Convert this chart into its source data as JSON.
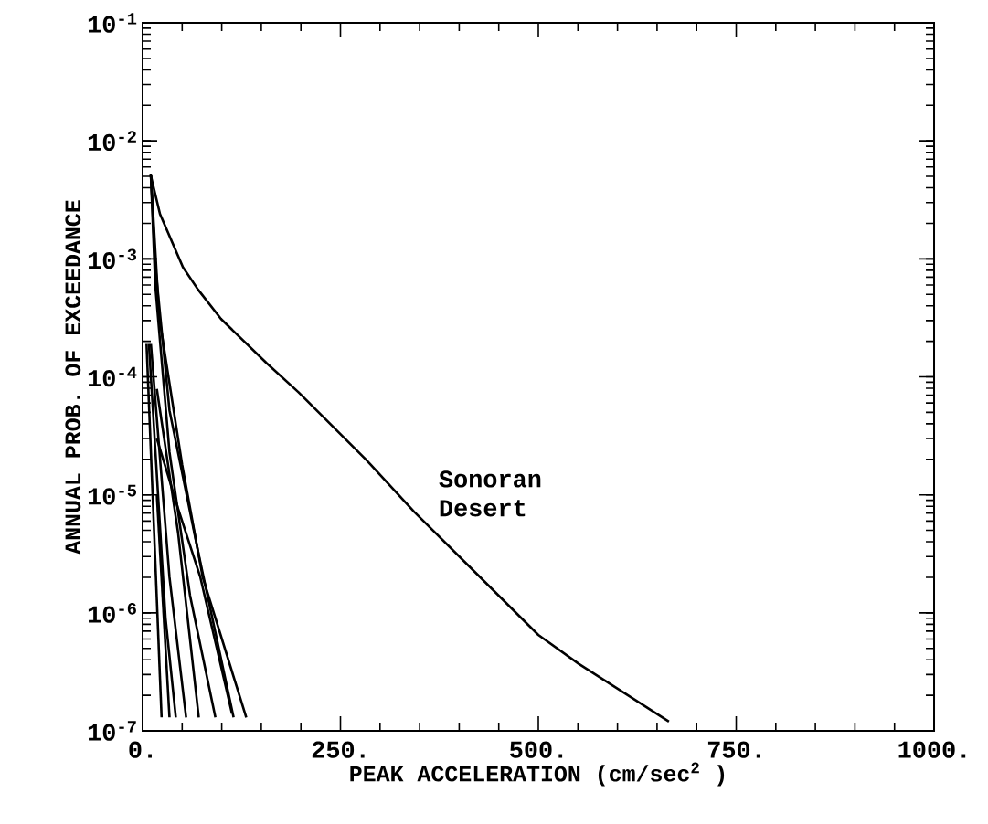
{
  "chart_data": {
    "type": "line",
    "xlabel": "PEAK ACCELERATION (cm/sec$^{2}$ )",
    "ylabel": "ANNUAL PROB. OF EXCEEDANCE",
    "log": "y",
    "marker": "none",
    "line_style": "solid",
    "xlim": [
      0,
      1000
    ],
    "xticks": [
      {
        "value": 0,
        "label": "0."
      },
      {
        "value": 250,
        "label": "250."
      },
      {
        "value": 500,
        "label": "500."
      },
      {
        "value": 750,
        "label": "750."
      },
      {
        "value": 1000,
        "label": "1000."
      }
    ],
    "ylim": [
      1e-07,
      0.1
    ],
    "yticks": [
      {
        "value": 1e-07,
        "label": "10$^{-7}$"
      },
      {
        "value": 1e-06,
        "label": "10$^{-6}$"
      },
      {
        "value": 1e-05,
        "label": "10$^{-5}$"
      },
      {
        "value": 0.0001,
        "label": "10$^{-4}$"
      },
      {
        "value": 0.001,
        "label": "10$^{-3}$"
      },
      {
        "value": 0.01,
        "label": "10$^{-2}$"
      },
      {
        "value": 0.1,
        "label": "10$^{-1}$"
      }
    ],
    "annotations": [
      "Sonoran Desert"
    ],
    "series": [
      {
        "color": "#000000",
        "x": [
          10,
          22,
          51,
          70,
          99,
          157,
          197,
          282,
          343,
          500,
          551,
          665
        ],
        "values": [
          0.0052,
          0.0024,
          0.00085,
          0.00055,
          0.00031,
          0.00013,
          7.4e-05,
          2e-05,
          7.2e-06,
          6.5e-07,
          3.7e-07,
          1.2e-07
        ]
      },
      {
        "color": "#000000",
        "x": [
          10.5,
          21,
          50,
          76,
          131
        ],
        "values": [
          0.0051,
          0.00032,
          1.8e-05,
          2e-06,
          1.3e-07
        ]
      },
      {
        "color": "#000000",
        "x": [
          10.5,
          16,
          34,
          71,
          115
        ],
        "values": [
          0.0051,
          0.00089,
          5.2e-05,
          3.1e-06,
          1.3e-07
        ]
      },
      {
        "color": "#000000",
        "x": [
          18,
          45,
          73,
          113
        ],
        "values": [
          3e-05,
          7.6e-06,
          2e-06,
          1.4e-07
        ]
      },
      {
        "color": "#000000",
        "x": [
          10.5,
          16,
          34,
          60,
          92
        ],
        "values": [
          0.0051,
          0.0006,
          2.3e-05,
          1.4e-06,
          1.3e-07
        ]
      },
      {
        "color": "#000000",
        "x": [
          18,
          45,
          71
        ],
        "values": [
          7.9e-05,
          4.7e-06,
          1.3e-07
        ]
      },
      {
        "color": "#000000",
        "x": [
          10.5,
          34,
          55
        ],
        "values": [
          0.00019,
          2e-06,
          1.3e-07
        ]
      },
      {
        "color": "#000000",
        "x": [
          8,
          29,
          42
        ],
        "values": [
          0.00019,
          9e-07,
          1.3e-07
        ]
      },
      {
        "color": "#000000",
        "x": [
          18,
          34
        ],
        "values": [
          1e-05,
          1.3e-07
        ]
      },
      {
        "color": "#000000",
        "x": [
          5,
          24
        ],
        "values": [
          0.00019,
          1.3e-07
        ]
      }
    ]
  }
}
